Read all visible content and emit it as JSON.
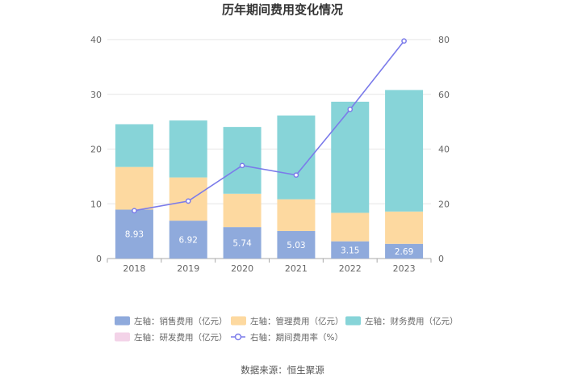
{
  "chart_data": {
    "type": "bar",
    "title": "历年期间费用变化情况",
    "categories": [
      "2018",
      "2019",
      "2020",
      "2021",
      "2022",
      "2023"
    ],
    "stacked": true,
    "left_axis": {
      "ylim": [
        0,
        40
      ],
      "ticks": [
        "0",
        "10",
        "20",
        "30",
        "40"
      ]
    },
    "right_axis": {
      "ylim": [
        0,
        80
      ],
      "ticks": [
        "0",
        "20",
        "40",
        "60",
        "80"
      ]
    },
    "series": [
      {
        "name": "左轴：销售费用（亿元）",
        "axis": "left",
        "type": "bar",
        "color": "#8faadc",
        "values": [
          8.93,
          6.92,
          5.74,
          5.03,
          3.15,
          2.69
        ],
        "labels": [
          "8.93",
          "6.92",
          "5.74",
          "5.03",
          "3.15",
          "2.69"
        ]
      },
      {
        "name": "左轴：管理费用（亿元）",
        "axis": "left",
        "type": "bar",
        "color": "#fdd9a0",
        "values": [
          7.8,
          7.9,
          6.1,
          5.8,
          5.2,
          5.9
        ]
      },
      {
        "name": "左轴：财务费用（亿元）",
        "axis": "left",
        "type": "bar",
        "color": "#87d4d8",
        "values": [
          7.8,
          10.4,
          12.2,
          15.3,
          20.3,
          22.2
        ]
      },
      {
        "name": "左轴：研发费用（亿元）",
        "axis": "left",
        "type": "bar",
        "color": "#f3d3e8",
        "values": [
          0,
          0,
          0,
          0,
          0,
          0
        ]
      },
      {
        "name": "右轴：期间费用率（%）",
        "axis": "right",
        "type": "line",
        "color": "#7b7bea",
        "values": [
          17.5,
          21,
          34,
          30.5,
          54.5,
          79.5
        ]
      }
    ],
    "grid": true,
    "legend_position": "bottom",
    "source": "数据来源：恒生聚源"
  }
}
